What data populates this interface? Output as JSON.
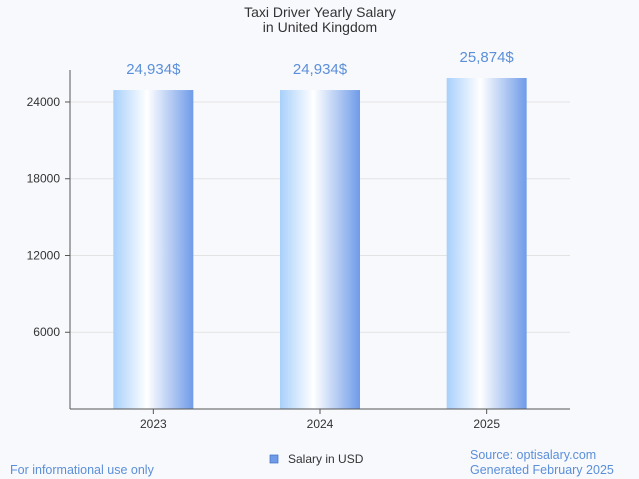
{
  "chart_data": {
    "type": "bar",
    "title": [
      "Taxi Driver Yearly Salary",
      "in United Kingdom"
    ],
    "categories": [
      "2023",
      "2024",
      "2025"
    ],
    "series": [
      {
        "name": "Salary in USD",
        "values": [
          24934,
          24934,
          25874
        ],
        "labels": [
          "24,934$",
          "24,934$",
          "25,874$"
        ]
      }
    ],
    "yticks": [
      6000,
      12000,
      18000,
      24000
    ],
    "ytick_labels": [
      "6000",
      "12000",
      "18000",
      "24000"
    ],
    "ylim": [
      0,
      26500
    ],
    "grid": true,
    "legend_position": "bottom"
  },
  "footer": {
    "disclaimer": "For informational use only",
    "source": "Source: optisalary.com",
    "generated": "Generated February 2025"
  },
  "colors": {
    "accent": "#5b8fd9",
    "bar_light": "#ffffff",
    "bar_dark": "#6f9be8",
    "grid": "#e3e3e3",
    "axis": "#555555"
  }
}
